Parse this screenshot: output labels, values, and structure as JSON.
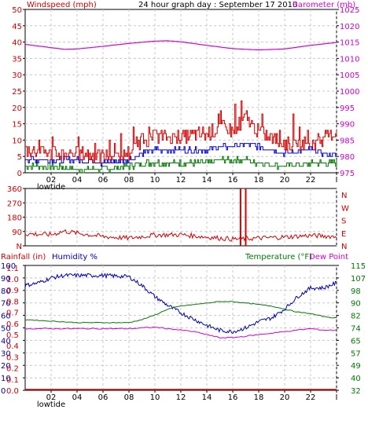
{
  "colors": {
    "wind": "#d40000",
    "gust": "#d40000",
    "avg": "#0000cc",
    "low": "#007a00",
    "baro": "#d400d4",
    "dir": "#d40000",
    "humidity": "#0000b0",
    "temp": "#007a00",
    "dew": "#d400d4",
    "rain": "#d40000",
    "grid": "#c8c8c8",
    "frame": "#000000"
  },
  "chart_data": [
    {
      "type": "line",
      "panel": "wind",
      "title": "24 hour graph day : September 17 2010",
      "ylabel_left": "Windspeed (mph)",
      "ylabel_right": "Barometer (mb)",
      "ylim_left": [
        0,
        50
      ],
      "ylim_right": [
        975,
        1025
      ],
      "yticks_left": [
        "0",
        "5",
        "10",
        "15",
        "20",
        "25",
        "30",
        "35",
        "40",
        "45",
        "50"
      ],
      "yticks_right": [
        "975",
        "980",
        "985",
        "990",
        "995",
        "1000",
        "1005",
        "1010",
        "1015",
        "1020",
        "1025"
      ],
      "xticks": [
        "02",
        "04",
        "06",
        "08",
        "10",
        "12",
        "14",
        "16",
        "18",
        "20",
        "22",
        "I"
      ],
      "xlim_hours": [
        0,
        24
      ],
      "x_annotations": [
        {
          "x": 2,
          "text": "lowtide"
        }
      ],
      "grid": true,
      "barometer": {
        "x": [
          0,
          2,
          3,
          4,
          6,
          8,
          10,
          11,
          12,
          14,
          16,
          18,
          20,
          22,
          24
        ],
        "y": [
          1014.3,
          1013.3,
          1012.8,
          1012.9,
          1013.7,
          1014.6,
          1015.3,
          1015.4,
          1015.1,
          1014.0,
          1013.0,
          1012.6,
          1012.9,
          1014.0,
          1014.9
        ]
      },
      "series": [
        {
          "role": "gust",
          "x": [
            0,
            2,
            4,
            6,
            8,
            9,
            10,
            12,
            14,
            15,
            16,
            17,
            18,
            20,
            22,
            23,
            24
          ],
          "y": [
            7,
            6,
            6,
            5,
            6,
            10,
            11,
            11,
            12,
            14,
            13,
            17,
            12,
            9,
            9,
            10,
            13
          ]
        },
        {
          "role": "avg",
          "x": [
            0,
            2,
            4,
            6,
            8,
            9,
            10,
            12,
            14,
            15,
            16,
            17,
            18,
            20,
            22,
            24
          ],
          "y": [
            4,
            4,
            4,
            3,
            4,
            6,
            7,
            7,
            7,
            8,
            8,
            9,
            8,
            6,
            7,
            5
          ]
        },
        {
          "role": "low",
          "x": [
            0,
            2,
            4,
            6,
            8,
            9,
            10,
            12,
            14,
            15,
            16,
            17,
            18,
            20,
            22,
            24
          ],
          "y": [
            2,
            2,
            1,
            1,
            2,
            3,
            3,
            3,
            3,
            4,
            4,
            4,
            3,
            2,
            3,
            3
          ]
        }
      ]
    },
    {
      "type": "line",
      "panel": "direction",
      "ylim": [
        0,
        360
      ],
      "yticks": [
        "N",
        "90",
        "180",
        "270",
        "360"
      ],
      "compass_right": [
        "N",
        "W",
        "S",
        "E",
        "N"
      ],
      "xlim_hours": [
        0,
        24
      ],
      "grid": true,
      "x": [
        0,
        2,
        3,
        4,
        6,
        8,
        10,
        12,
        14,
        16,
        18,
        20,
        22,
        24
      ],
      "y": [
        75,
        70,
        92,
        80,
        58,
        48,
        68,
        70,
        55,
        42,
        48,
        55,
        65,
        58
      ],
      "spikes": [
        {
          "x": 16.6,
          "y": 360
        },
        {
          "x": 17.0,
          "y": 360
        }
      ]
    },
    {
      "type": "line",
      "panel": "thermo",
      "ylabel_left": "Rainfall (in)",
      "ylabel_left2": "Humidity %",
      "ylabel_right": "Temperature (°F)",
      "ylabel_right2": "Dew Point",
      "yticks_rain": [
        "0.0",
        "0.1",
        "0.2",
        "0.3",
        "0.4",
        "0.5",
        "0.6",
        "0.7",
        "0.8",
        "0.9",
        "1.0",
        "1.1",
        "1.2"
      ],
      "yticks_hum": [
        "0",
        "10",
        "20",
        "30",
        "40",
        "50",
        "60",
        "70",
        "80",
        "90",
        "100"
      ],
      "yticks_temp": [
        "32",
        "40",
        "49",
        "57",
        "65",
        "74",
        "82",
        "90",
        "98",
        "107",
        "115"
      ],
      "ylim_humidity": [
        0,
        100
      ],
      "ylim_temp": [
        32,
        115
      ],
      "xticks": [
        "02",
        "04",
        "06",
        "08",
        "10",
        "12",
        "14",
        "16",
        "18",
        "20",
        "22",
        "I"
      ],
      "x_annotations": [
        {
          "x": 2,
          "text": "lowtide"
        }
      ],
      "xlim_hours": [
        0,
        24
      ],
      "grid": true,
      "series": [
        {
          "role": "humidity",
          "x": [
            0,
            1,
            2,
            3,
            4,
            6,
            8,
            9,
            10,
            11,
            12,
            13,
            14,
            15,
            16,
            17,
            18,
            19,
            20,
            21,
            22,
            23,
            24
          ],
          "y": [
            84,
            86,
            90,
            92,
            92,
            92,
            91,
            84,
            75,
            68,
            62,
            57,
            52,
            48,
            47,
            50,
            55,
            58,
            65,
            75,
            82,
            82,
            86
          ]
        },
        {
          "role": "temperature",
          "x": [
            0,
            2,
            4,
            6,
            8,
            9,
            10,
            11,
            12,
            13,
            14,
            15,
            16,
            17,
            18,
            19,
            20,
            21,
            22,
            23,
            24
          ],
          "y": [
            79,
            78,
            77,
            77,
            77,
            79,
            82,
            86,
            88,
            89,
            90,
            91,
            91,
            90,
            89,
            88,
            86,
            84,
            83,
            81,
            80
          ]
        },
        {
          "role": "dewpoint",
          "x": [
            0,
            2,
            4,
            6,
            8,
            9,
            10,
            12,
            13,
            14,
            15,
            16,
            17,
            18,
            19,
            20,
            21,
            22,
            23,
            24
          ],
          "y": [
            73,
            73,
            73,
            73,
            73,
            73.5,
            74,
            72,
            71,
            69,
            67,
            67,
            68,
            69,
            70,
            71,
            72,
            73,
            72,
            72
          ]
        },
        {
          "role": "rainfall",
          "x": [
            0,
            24
          ],
          "y": [
            0,
            0
          ]
        }
      ]
    }
  ]
}
